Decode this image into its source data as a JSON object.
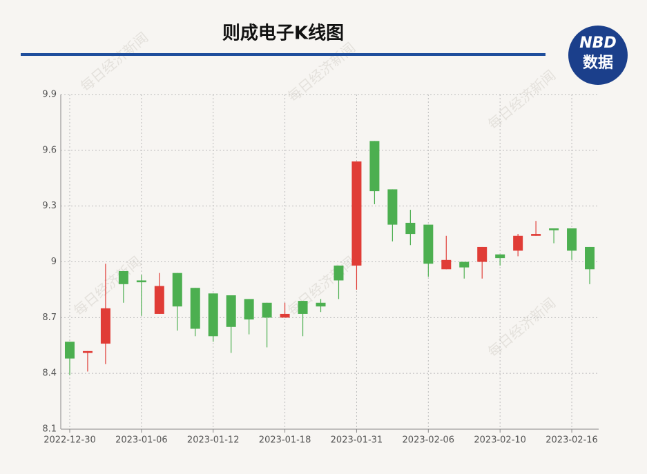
{
  "title": "则成电子K线图",
  "logo": {
    "top": "NBD",
    "bottom": "数据"
  },
  "watermark": "每日经济新闻",
  "chart_data": {
    "type": "candlestick",
    "categories": [
      "2022-12-30",
      null,
      null,
      null,
      "2023-01-06",
      null,
      null,
      null,
      "2023-01-12",
      null,
      null,
      null,
      "2023-01-18",
      null,
      null,
      null,
      "2023-01-31",
      null,
      null,
      null,
      "2023-02-06",
      null,
      null,
      null,
      "2023-02-10",
      null,
      null,
      null,
      "2023-02-16",
      null
    ],
    "open": [
      8.57,
      8.51,
      8.56,
      8.95,
      8.9,
      8.72,
      8.94,
      8.86,
      8.83,
      8.82,
      8.8,
      8.78,
      8.7,
      8.79,
      8.78,
      8.98,
      8.98,
      9.65,
      9.39,
      9.21,
      9.2,
      8.96,
      9.0,
      9.0,
      9.04,
      9.06,
      9.14,
      9.18,
      9.18,
      9.08
    ],
    "high": [
      8.57,
      8.52,
      8.99,
      8.95,
      8.93,
      8.94,
      8.94,
      8.86,
      8.83,
      8.82,
      8.8,
      8.78,
      8.78,
      8.79,
      8.8,
      8.98,
      9.54,
      9.65,
      9.39,
      9.28,
      9.2,
      9.14,
      9.0,
      9.08,
      9.04,
      9.15,
      9.22,
      9.18,
      9.18,
      9.08
    ],
    "low": [
      8.39,
      8.41,
      8.45,
      8.78,
      8.71,
      8.72,
      8.63,
      8.6,
      8.57,
      8.51,
      8.61,
      8.54,
      8.7,
      8.6,
      8.73,
      8.8,
      8.85,
      9.31,
      9.11,
      9.09,
      8.92,
      8.96,
      8.91,
      8.91,
      8.98,
      9.03,
      9.14,
      9.1,
      9.01,
      8.88
    ],
    "close": [
      8.48,
      8.52,
      8.75,
      8.88,
      8.89,
      8.87,
      8.76,
      8.64,
      8.6,
      8.65,
      8.69,
      8.7,
      8.72,
      8.72,
      8.76,
      8.9,
      9.54,
      9.38,
      9.2,
      9.15,
      8.99,
      9.01,
      8.97,
      9.08,
      9.02,
      9.14,
      9.15,
      9.17,
      9.06,
      8.96
    ],
    "up_color": "#e03c36",
    "down_color": "#4caf50",
    "ylim": [
      8.1,
      9.9
    ],
    "yticks": [
      8.1,
      8.4,
      8.7,
      9,
      9.3,
      9.6,
      9.9
    ],
    "grid": true
  }
}
